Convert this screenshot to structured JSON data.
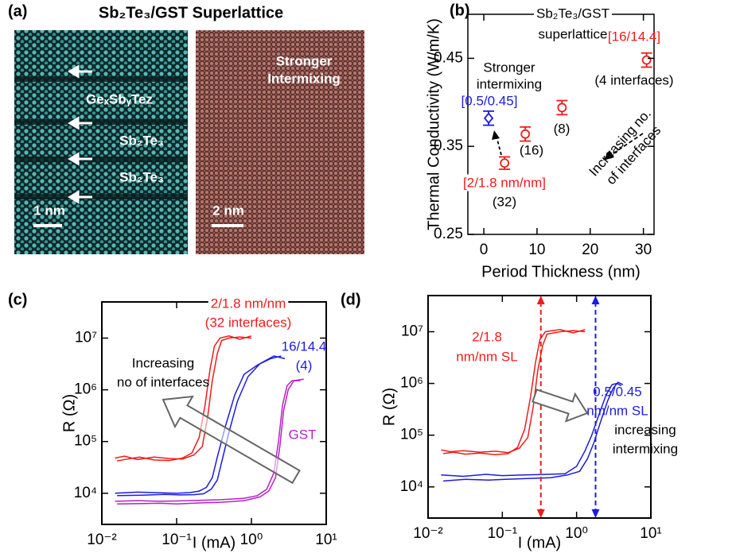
{
  "panel_a": {
    "label": "(a)",
    "title": "Sb₂Te₃/GST Superlattice",
    "left_image": {
      "layer_labels": [
        "GeₓSbᵧTez",
        "Sb₂Te₃",
        "Sb₂Te₃"
      ],
      "scale_bar": "1 nm"
    },
    "right_image": {
      "caption": [
        "Stronger",
        "Intermixing"
      ],
      "scale_bar": "2 nm"
    }
  },
  "chart_data": [
    {
      "type": "scatter",
      "label": "(b)",
      "xlabel": "Period Thickness (nm)",
      "ylabel": "Thermal Conductivity (W/m/K)",
      "xlim": [
        -3,
        32
      ],
      "xticks": [
        0,
        10,
        20,
        30
      ],
      "ylim": [
        0.25,
        0.5
      ],
      "yticks": [
        0.25,
        0.35,
        0.45
      ],
      "series": [
        {
          "color": "#1c1ce0",
          "marker": "diamond",
          "x": [
            0.9
          ],
          "values": [
            0.382
          ],
          "errors": [
            0.008
          ]
        },
        {
          "color": "#f01b1b",
          "marker": "circle",
          "x": [
            3.9,
            7.8,
            14.7,
            30.6
          ],
          "values": [
            0.331,
            0.364,
            0.394,
            0.448
          ],
          "errors": [
            0.007,
            0.008,
            0.008,
            0.008
          ]
        }
      ],
      "annotations": [
        {
          "text": "Sb₂Te₃/GST",
          "color": "#000000"
        },
        {
          "text": "superlattice",
          "color": "#000000"
        },
        {
          "text": "Stronger",
          "color": "#000000"
        },
        {
          "text": "intermixing",
          "color": "#000000"
        },
        {
          "text": "[0.5/0.45]",
          "color": "#1c1ce0"
        },
        {
          "text": "[2/1.8 nm/nm]",
          "color": "#f01b1b"
        },
        {
          "text": "(32)",
          "color": "#000000"
        },
        {
          "text": "(16)",
          "color": "#000000"
        },
        {
          "text": "(8)",
          "color": "#000000"
        },
        {
          "text": "[16/14.4]",
          "color": "#f01b1b"
        },
        {
          "text": "(4 interfaces)",
          "color": "#000000"
        },
        {
          "text": "Increasing no.",
          "color": "#000000"
        },
        {
          "text": "of interfaces",
          "color": "#000000"
        }
      ]
    },
    {
      "type": "line",
      "label": "(c)",
      "xlabel": "I (mA)",
      "ylabel": "R (Ω)",
      "xscale": "log",
      "yscale": "log",
      "xlim": [
        0.01,
        10
      ],
      "ylim": [
        2500,
        50000000
      ],
      "xticks": [
        {
          "value": 0.01,
          "label": "10⁻²"
        },
        {
          "value": 0.1,
          "label": "10⁻¹"
        },
        {
          "value": 1,
          "label": "10⁰"
        },
        {
          "value": 10,
          "label": "10¹"
        }
      ],
      "yticks": [
        {
          "value": 10000,
          "label": "10⁴"
        },
        {
          "value": 100000,
          "label": "10⁵"
        },
        {
          "value": 1000000,
          "label": "10⁶"
        },
        {
          "value": 10000000,
          "label": "10⁷"
        }
      ],
      "series": [
        {
          "color": "#f01b1b",
          "x": [
            0.015,
            0.02,
            0.03,
            0.05,
            0.08,
            0.12,
            0.17,
            0.22,
            0.26,
            0.3,
            0.35,
            0.4,
            0.5,
            0.7,
            1.0
          ],
          "values": [
            48000,
            52000,
            45000,
            50000,
            47000,
            46000,
            55000,
            80000,
            300000,
            1500000,
            5000000,
            9000000,
            10000000,
            10500000,
            10000000
          ]
        },
        {
          "color": "#f01b1b",
          "x": [
            0.016,
            0.022,
            0.032,
            0.05,
            0.08,
            0.12,
            0.16,
            0.2,
            0.24,
            0.28,
            0.32,
            0.38,
            0.5,
            0.7,
            1.0
          ],
          "values": [
            42000,
            46000,
            50000,
            44000,
            43000,
            48000,
            60000,
            120000,
            500000,
            2500000,
            7000000,
            10000000,
            11000000,
            9500000,
            11000000
          ]
        },
        {
          "color": "#1c1ce0",
          "x": [
            0.015,
            0.03,
            0.06,
            0.1,
            0.15,
            0.2,
            0.25,
            0.3,
            0.35,
            0.45,
            0.6,
            0.8,
            1.2,
            1.8,
            2.5
          ],
          "values": [
            10000,
            10500,
            10200,
            10000,
            10300,
            11000,
            13000,
            20000,
            50000,
            200000,
            800000,
            2000000,
            3000000,
            4000000,
            4500000
          ]
        },
        {
          "color": "#1c1ce0",
          "x": [
            0.016,
            0.034,
            0.07,
            0.11,
            0.17,
            0.23,
            0.29,
            0.35,
            0.4,
            0.5,
            0.65,
            0.9,
            1.3,
            2.0,
            2.8
          ],
          "values": [
            9000,
            9200,
            9500,
            9300,
            9400,
            9800,
            12000,
            18000,
            40000,
            150000,
            600000,
            1800000,
            3200000,
            4500000,
            4000000
          ]
        },
        {
          "color": "#b522c4",
          "x": [
            0.015,
            0.03,
            0.06,
            0.1,
            0.2,
            0.4,
            0.8,
            1.2,
            1.6,
            2.0,
            2.3,
            2.6,
            3.0,
            3.5,
            4.5
          ],
          "values": [
            7000,
            7200,
            7000,
            7100,
            7300,
            7500,
            8000,
            9000,
            12000,
            25000,
            100000,
            500000,
            1200000,
            1500000,
            1500000
          ]
        },
        {
          "color": "#b522c4",
          "x": [
            0.016,
            0.03,
            0.06,
            0.1,
            0.2,
            0.4,
            0.8,
            1.3,
            1.7,
            2.1,
            2.4,
            2.7,
            3.1,
            3.7,
            5.0
          ],
          "values": [
            6200,
            6300,
            6400,
            6200,
            6500,
            6700,
            7200,
            8500,
            11000,
            20000,
            80000,
            400000,
            1000000,
            1500000,
            1600000
          ]
        }
      ],
      "annotations": [
        {
          "text": "2/1.8 nm/nm",
          "color": "#f01b1b"
        },
        {
          "text": "(32 interfaces)",
          "color": "#f01b1b"
        },
        {
          "text": "16/14.4",
          "color": "#1c1ce0"
        },
        {
          "text": "(4)",
          "color": "#1c1ce0"
        },
        {
          "text": "Increasing",
          "color": "#000000"
        },
        {
          "text": "no of interfaces",
          "color": "#000000"
        },
        {
          "text": "GST",
          "color": "#b522c4"
        }
      ]
    },
    {
      "type": "line",
      "label": "(d)",
      "xlabel": "I (mA)",
      "ylabel": "R (Ω)",
      "xscale": "log",
      "yscale": "log",
      "xlim": [
        0.01,
        10
      ],
      "ylim": [
        2500,
        50000000
      ],
      "xticks": [
        {
          "value": 0.01,
          "label": "10⁻²"
        },
        {
          "value": 0.1,
          "label": "10⁻¹"
        },
        {
          "value": 1,
          "label": "10⁰"
        },
        {
          "value": 10,
          "label": "10¹"
        }
      ],
      "yticks": [
        {
          "value": 10000,
          "label": "10⁴"
        },
        {
          "value": 100000,
          "label": "10⁵"
        },
        {
          "value": 1000000,
          "label": "10⁶"
        },
        {
          "value": 10000000,
          "label": "10⁷"
        }
      ],
      "series": [
        {
          "color": "#f01b1b",
          "x": [
            0.015,
            0.02,
            0.03,
            0.05,
            0.08,
            0.12,
            0.17,
            0.22,
            0.26,
            0.3,
            0.35,
            0.4,
            0.6,
            0.9,
            1.3
          ],
          "values": [
            52000,
            48000,
            50000,
            47000,
            49000,
            46000,
            56000,
            90000,
            350000,
            1800000,
            5500000,
            9000000,
            10000000,
            10500000,
            10000000
          ]
        },
        {
          "color": "#f01b1b",
          "x": [
            0.016,
            0.022,
            0.032,
            0.05,
            0.08,
            0.12,
            0.16,
            0.2,
            0.24,
            0.28,
            0.32,
            0.38,
            0.6,
            0.9,
            1.3
          ],
          "values": [
            44000,
            47000,
            43000,
            45000,
            42000,
            44000,
            58000,
            130000,
            550000,
            2600000,
            7000000,
            10000000,
            11000000,
            9500000,
            11000000
          ]
        },
        {
          "color": "#1c1ce0",
          "x": [
            0.015,
            0.03,
            0.06,
            0.1,
            0.2,
            0.4,
            0.7,
            1.0,
            1.3,
            1.6,
            2.0,
            2.5,
            3.0,
            3.5,
            4.0
          ],
          "values": [
            17000,
            16000,
            17500,
            16500,
            17000,
            17500,
            18000,
            25000,
            50000,
            100000,
            250000,
            600000,
            950000,
            1000000,
            900000
          ]
        },
        {
          "color": "#1c1ce0",
          "x": [
            0.016,
            0.032,
            0.065,
            0.11,
            0.22,
            0.45,
            0.75,
            1.1,
            1.4,
            1.7,
            2.1,
            2.6,
            3.1,
            3.6,
            4.2
          ],
          "values": [
            13000,
            14000,
            13500,
            14000,
            14500,
            15000,
            17000,
            20000,
            35000,
            70000,
            180000,
            450000,
            800000,
            1050000,
            950000
          ]
        }
      ],
      "vlines": [
        {
          "x": 0.33,
          "color": "#f01b1b"
        },
        {
          "x": 1.8,
          "color": "#1c1ce0"
        }
      ],
      "annotations": [
        {
          "text": "2/1.8",
          "color": "#f01b1b"
        },
        {
          "text": "nm/nm SL",
          "color": "#f01b1b"
        },
        {
          "text": "0.5/0.45",
          "color": "#1c1ce0"
        },
        {
          "text": "nm/nm SL",
          "color": "#1c1ce0"
        },
        {
          "text": "increasing",
          "color": "#000000"
        },
        {
          "text": "intermixing",
          "color": "#000000"
        }
      ]
    }
  ]
}
